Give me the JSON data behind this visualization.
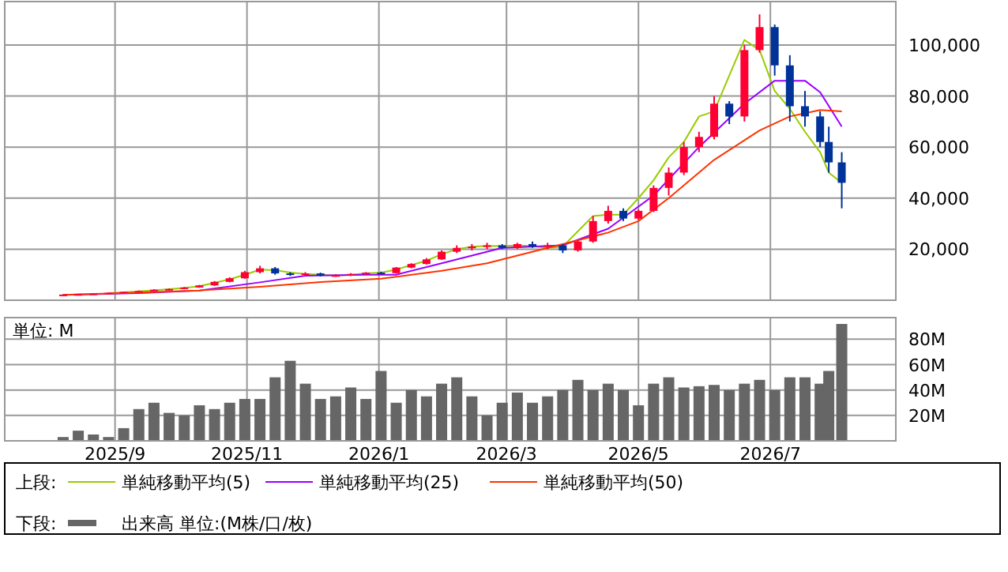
{
  "chart_data": [
    {
      "type": "candlestick",
      "legend_title": "上段:",
      "legend": "bottom",
      "grid": true,
      "tick_labels": "y",
      "x": [
        "2025-08-08",
        "2025-08-15",
        "2025-08-22",
        "2025-08-29",
        "2025-09-05",
        "2025-09-12",
        "2025-09-19",
        "2025-09-26",
        "2025-10-03",
        "2025-10-10",
        "2025-10-17",
        "2025-10-24",
        "2025-10-31",
        "2025-11-07",
        "2025-11-14",
        "2025-11-21",
        "2025-11-28",
        "2025-12-05",
        "2025-12-12",
        "2025-12-19",
        "2025-12-26",
        "2026-01-02",
        "2026-01-09",
        "2026-01-16",
        "2026-01-23",
        "2026-01-30",
        "2026-02-06",
        "2026-02-13",
        "2026-02-20",
        "2026-02-27",
        "2026-03-06",
        "2026-03-13",
        "2026-03-20",
        "2026-03-27",
        "2026-04-03",
        "2026-04-10",
        "2026-04-17",
        "2026-04-24",
        "2026-05-01",
        "2026-05-08",
        "2026-05-15",
        "2026-05-22",
        "2026-05-29",
        "2026-06-05",
        "2026-06-12",
        "2026-06-19",
        "2026-06-26",
        "2026-07-03",
        "2026-07-10",
        "2026-07-17",
        "2026-07-24",
        "2026-07-28",
        "2026-08-03"
      ],
      "ohlc": [
        [
          2000,
          2300,
          1900,
          2200
        ],
        [
          2200,
          2500,
          2100,
          2400
        ],
        [
          2400,
          2700,
          2300,
          2600
        ],
        [
          2600,
          3000,
          2500,
          2900
        ],
        [
          2900,
          3400,
          2800,
          3300
        ],
        [
          3300,
          3800,
          3200,
          3600
        ],
        [
          3600,
          4300,
          3500,
          4100
        ],
        [
          4100,
          4600,
          3900,
          4400
        ],
        [
          4400,
          5200,
          4300,
          5000
        ],
        [
          5000,
          6000,
          4900,
          5800
        ],
        [
          5800,
          7500,
          5600,
          7200
        ],
        [
          7200,
          9000,
          7000,
          8600
        ],
        [
          8600,
          11500,
          8400,
          11000
        ],
        [
          11000,
          13500,
          10500,
          12500
        ],
        [
          12500,
          13000,
          10000,
          10500
        ],
        [
          10500,
          11000,
          9500,
          10000
        ],
        [
          10000,
          11000,
          9600,
          10500
        ],
        [
          10500,
          10800,
          9300,
          9600
        ],
        [
          9600,
          10200,
          9200,
          9800
        ],
        [
          9800,
          10600,
          9500,
          10300
        ],
        [
          10300,
          11000,
          10000,
          10800
        ],
        [
          10800,
          11200,
          10300,
          10600
        ],
        [
          10600,
          13000,
          10500,
          12800
        ],
        [
          12800,
          14500,
          12500,
          14200
        ],
        [
          14200,
          16500,
          14000,
          16000
        ],
        [
          16000,
          19500,
          15800,
          19000
        ],
        [
          19000,
          21500,
          18500,
          20500
        ],
        [
          20500,
          22000,
          19500,
          21000
        ],
        [
          21000,
          22500,
          20000,
          21500
        ],
        [
          21500,
          22000,
          20000,
          20500
        ],
        [
          20500,
          22500,
          20000,
          22000
        ],
        [
          22000,
          23000,
          20500,
          21000
        ],
        [
          21000,
          22500,
          20000,
          21500
        ],
        [
          21500,
          22000,
          18500,
          19500
        ],
        [
          19500,
          23500,
          19000,
          23000
        ],
        [
          23000,
          33000,
          22500,
          31000
        ],
        [
          31000,
          37000,
          30000,
          35000
        ],
        [
          35000,
          36000,
          31000,
          32000
        ],
        [
          32000,
          35500,
          31500,
          35000
        ],
        [
          35000,
          45000,
          34500,
          44000
        ],
        [
          44000,
          52000,
          41000,
          50000
        ],
        [
          50000,
          62000,
          49000,
          60000
        ],
        [
          60000,
          66000,
          58000,
          64000
        ],
        [
          64000,
          80000,
          63000,
          77000
        ],
        [
          77000,
          78000,
          69000,
          72000
        ],
        [
          72000,
          100000,
          70000,
          98000
        ],
        [
          98000,
          112000,
          97000,
          107000
        ],
        [
          107000,
          108000,
          88000,
          92000
        ],
        [
          92000,
          96000,
          70000,
          76000
        ],
        [
          76000,
          82000,
          68000,
          72000
        ],
        [
          72000,
          74000,
          60000,
          62000
        ],
        [
          62000,
          68000,
          50000,
          54000
        ],
        [
          54000,
          58000,
          36000,
          46000
        ]
      ],
      "colors": [
        "#ff0033",
        "#ff0033",
        "#ff0033",
        "#ff0033",
        "#ff0033",
        "#ff0033",
        "#ff0033",
        "#ff0033",
        "#ff0033",
        "#ff0033",
        "#ff0033",
        "#ff0033",
        "#ff0033",
        "#ff0033",
        "#003399",
        "#003399",
        "#ff0033",
        "#003399",
        "#ff0033",
        "#ff0033",
        "#ff0033",
        "#003399",
        "#ff0033",
        "#ff0033",
        "#ff0033",
        "#ff0033",
        "#ff0033",
        "#ff0033",
        "#ff0033",
        "#003399",
        "#ff0033",
        "#003399",
        "#ff0033",
        "#003399",
        "#ff0033",
        "#ff0033",
        "#ff0033",
        "#003399",
        "#ff0033",
        "#ff0033",
        "#ff0033",
        "#ff0033",
        "#ff0033",
        "#ff0033",
        "#003399",
        "#ff0033",
        "#ff0033",
        "#003399",
        "#003399",
        "#003399",
        "#003399",
        "#003399",
        "#003399"
      ],
      "series": [
        {
          "type": "line",
          "name": "単純移動平均(5)",
          "color": "#99cc00",
          "x": [
            "2025-08-29",
            "2025-09-05",
            "2025-09-12",
            "2025-09-19",
            "2025-09-26",
            "2025-10-03",
            "2025-10-10",
            "2025-10-17",
            "2025-10-24",
            "2025-10-31",
            "2025-11-07",
            "2025-11-14",
            "2025-11-21",
            "2025-11-28",
            "2025-12-05",
            "2025-12-12",
            "2025-12-19",
            "2025-12-26",
            "2026-01-02",
            "2026-01-09",
            "2026-01-16",
            "2026-01-23",
            "2026-01-30",
            "2026-02-06",
            "2026-02-13",
            "2026-02-20",
            "2026-02-27",
            "2026-03-06",
            "2026-03-13",
            "2026-03-20",
            "2026-03-27",
            "2026-04-03",
            "2026-04-10",
            "2026-04-17",
            "2026-04-24",
            "2026-05-01",
            "2026-05-08",
            "2026-05-15",
            "2026-05-22",
            "2026-05-29",
            "2026-06-05",
            "2026-06-12",
            "2026-06-19",
            "2026-06-26",
            "2026-07-03",
            "2026-07-10",
            "2026-07-17",
            "2026-07-24",
            "2026-07-28",
            "2026-08-03"
          ],
          "values": [
            2800,
            3100,
            3500,
            3900,
            4300,
            4800,
            5500,
            6800,
            8200,
            10000,
            12000,
            11800,
            10800,
            10300,
            10000,
            9700,
            10000,
            10500,
            10800,
            12000,
            13800,
            15500,
            18000,
            20000,
            21000,
            21300,
            21200,
            21500,
            21200,
            20500,
            21000,
            27000,
            33000,
            33500,
            33500,
            40000,
            47000,
            56000,
            62000,
            72000,
            74000,
            88000,
            102000,
            98000,
            82000,
            75000,
            66000,
            58000,
            50000,
            46000
          ]
        },
        {
          "type": "line",
          "name": "単純移動平均(25)",
          "color": "#9900ff",
          "x": [
            "2025-08-08",
            "2025-09-12",
            "2025-10-10",
            "2025-11-07",
            "2025-11-28",
            "2025-12-26",
            "2026-01-09",
            "2026-01-30",
            "2026-02-27",
            "2026-03-27",
            "2026-04-17",
            "2026-05-08",
            "2026-05-29",
            "2026-06-19",
            "2026-07-03",
            "2026-07-17",
            "2026-07-24",
            "2026-08-03"
          ],
          "values": [
            2100,
            2800,
            3800,
            7000,
            9600,
            10000,
            10000,
            14500,
            20500,
            21500,
            28000,
            41000,
            60000,
            77000,
            86000,
            86000,
            81500,
            68000
          ]
        },
        {
          "type": "line",
          "name": "単純移動平均(50)",
          "color": "#ff3300",
          "x": [
            "2025-08-08",
            "2025-09-12",
            "2025-10-10",
            "2025-11-07",
            "2025-12-05",
            "2026-01-02",
            "2026-01-30",
            "2026-02-20",
            "2026-03-06",
            "2026-03-27",
            "2026-04-17",
            "2026-05-01",
            "2026-05-15",
            "2026-06-05",
            "2026-06-26",
            "2026-07-10",
            "2026-07-24",
            "2026-08-03"
          ],
          "values": [
            2100,
            3000,
            3800,
            5300,
            7100,
            8400,
            11500,
            14500,
            17500,
            22000,
            26500,
            31000,
            40000,
            55000,
            66500,
            72000,
            74500,
            74000
          ]
        }
      ],
      "xlim": [
        "2025-07-12",
        "2026-08-28"
      ],
      "xticks": [
        {
          "value": "2025-09-01",
          "label": null
        },
        {
          "value": "2025-11-01",
          "label": null
        },
        {
          "value": "2026-01-01",
          "label": null
        },
        {
          "value": "2026-03-01",
          "label": null
        },
        {
          "value": "2026-05-01",
          "label": null
        },
        {
          "value": "2026-07-01",
          "label": null
        }
      ],
      "ylim": [
        0,
        117000
      ],
      "yticks": [
        {
          "value": 20000,
          "label": "20,000"
        },
        {
          "value": 40000,
          "label": "40,000"
        },
        {
          "value": 60000,
          "label": "60,000"
        },
        {
          "value": 80000,
          "label": "80,000"
        },
        {
          "value": 100000,
          "label": "100,000"
        }
      ]
    },
    {
      "type": "bar",
      "legend_title": "下段:",
      "legend": "bottom",
      "grid": true,
      "annotations": [
        "単位: M"
      ],
      "x": [
        "2025-08-08",
        "2025-08-15",
        "2025-08-22",
        "2025-08-29",
        "2025-09-05",
        "2025-09-12",
        "2025-09-19",
        "2025-09-26",
        "2025-10-03",
        "2025-10-10",
        "2025-10-17",
        "2025-10-24",
        "2025-10-31",
        "2025-11-07",
        "2025-11-14",
        "2025-11-21",
        "2025-11-28",
        "2025-12-05",
        "2025-12-12",
        "2025-12-19",
        "2025-12-26",
        "2026-01-02",
        "2026-01-09",
        "2026-01-16",
        "2026-01-23",
        "2026-01-30",
        "2026-02-06",
        "2026-02-13",
        "2026-02-20",
        "2026-02-27",
        "2026-03-06",
        "2026-03-13",
        "2026-03-20",
        "2026-03-27",
        "2026-04-03",
        "2026-04-10",
        "2026-04-17",
        "2026-04-24",
        "2026-05-01",
        "2026-05-08",
        "2026-05-15",
        "2026-05-22",
        "2026-05-29",
        "2026-06-05",
        "2026-06-12",
        "2026-06-19",
        "2026-06-26",
        "2026-07-03",
        "2026-07-10",
        "2026-07-17",
        "2026-07-24",
        "2026-07-28",
        "2026-08-03"
      ],
      "series": [
        {
          "name": "出来高 単位:(M株/口/枚)",
          "color": "#666666",
          "values": [
            3,
            8,
            5,
            3,
            10,
            25,
            30,
            22,
            20,
            28,
            25,
            30,
            33,
            33,
            50,
            63,
            45,
            33,
            35,
            42,
            33,
            55,
            30,
            40,
            35,
            45,
            50,
            35,
            20,
            30,
            38,
            30,
            35,
            40,
            48,
            40,
            45,
            40,
            28,
            45,
            50,
            42,
            43,
            44,
            40,
            45,
            48,
            40,
            50,
            50,
            45,
            55,
            92
          ]
        }
      ],
      "xlim": [
        "2025-07-12",
        "2026-08-28"
      ],
      "xticks": [
        {
          "value": "2025-09-01",
          "label": "2025/9"
        },
        {
          "value": "2025-11-01",
          "label": "2025/11"
        },
        {
          "value": "2026-01-01",
          "label": "2026/1"
        },
        {
          "value": "2026-03-01",
          "label": "2026/3"
        },
        {
          "value": "2026-05-01",
          "label": "2026/5"
        },
        {
          "value": "2026-07-01",
          "label": "2026/7"
        }
      ],
      "ylim": [
        0,
        97
      ],
      "yticks": [
        {
          "value": 20,
          "label": "20M"
        },
        {
          "value": 40,
          "label": "40M"
        },
        {
          "value": 60,
          "label": "60M"
        },
        {
          "value": 80,
          "label": "80M"
        }
      ]
    }
  ]
}
